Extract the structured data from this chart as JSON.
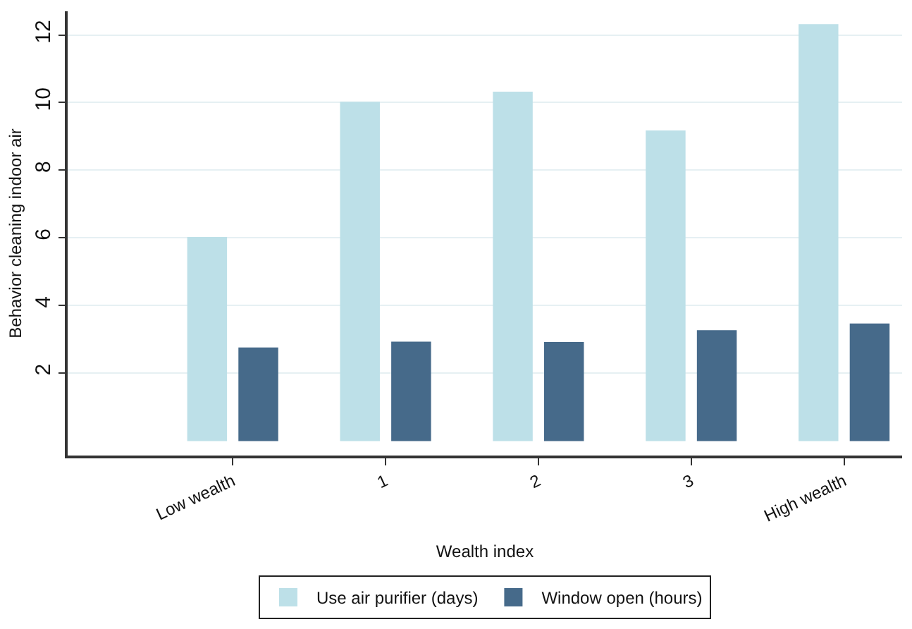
{
  "chart_data": {
    "type": "bar",
    "xlabel": "Wealth index",
    "ylabel": "Behavior cleaning indoor air",
    "categories": [
      "Low wealth",
      "1",
      "2",
      "3",
      "High wealth"
    ],
    "series": [
      {
        "name": "Use air purifier (days)",
        "color": "#bde0e8",
        "values": [
          6.0,
          10.0,
          10.3,
          9.15,
          12.3
        ]
      },
      {
        "name": "Window open (hours)",
        "color": "#466a8a",
        "values": [
          2.73,
          2.9,
          2.89,
          3.24,
          3.44
        ]
      }
    ],
    "ylim": [
      -0.45,
      12.7
    ],
    "yticks": [
      2,
      4,
      6,
      8,
      10,
      12
    ],
    "grid": "y",
    "legend": "bottom"
  }
}
